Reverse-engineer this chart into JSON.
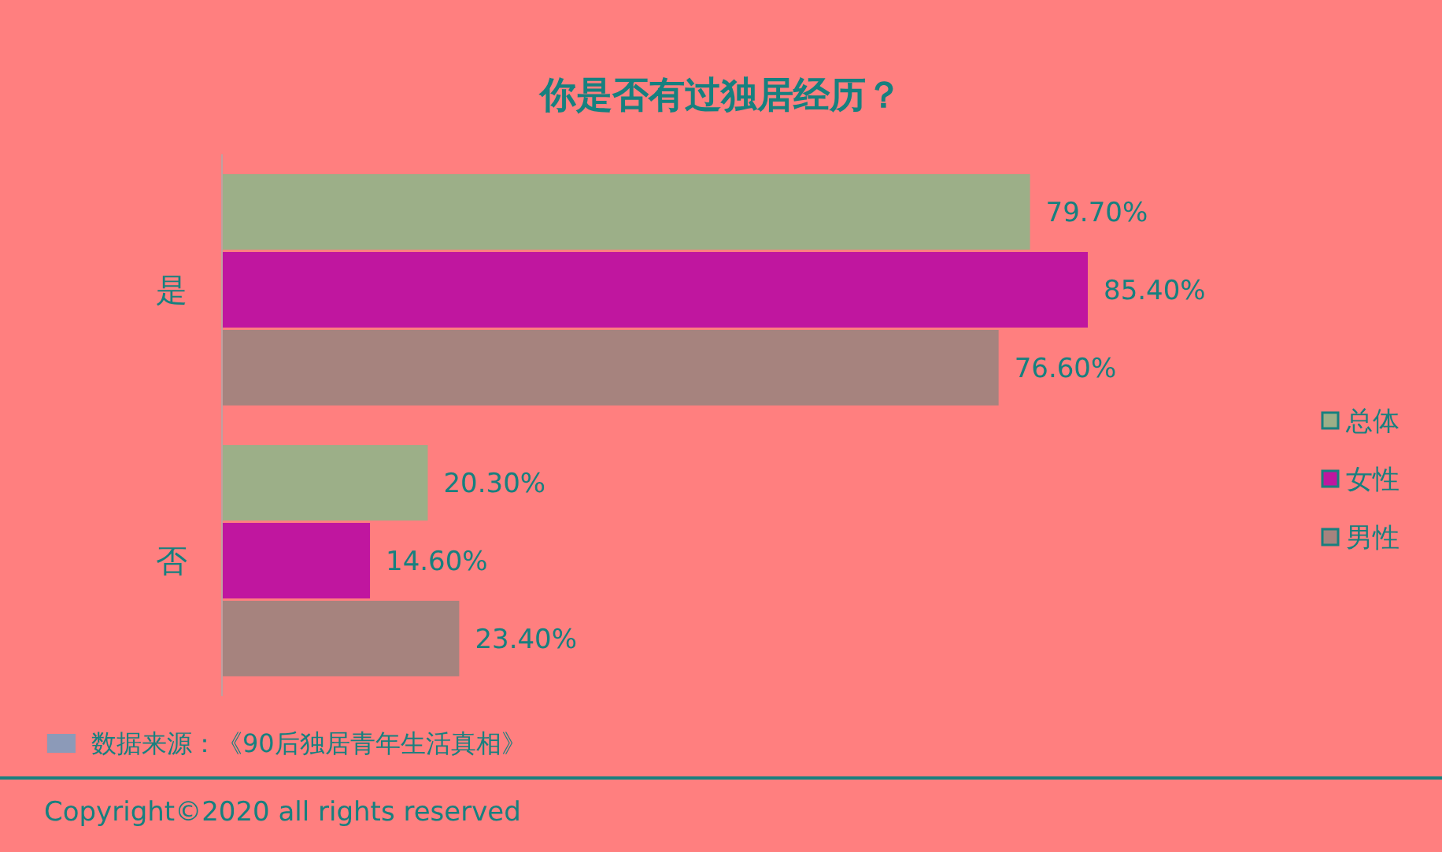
{
  "chart_data": {
    "type": "bar",
    "orientation": "horizontal",
    "title": "你是否有过独居经历？",
    "categories": [
      "是",
      "否"
    ],
    "series": [
      {
        "name": "总体",
        "color": "#9caf88",
        "values": [
          79.7,
          20.3
        ],
        "value_labels": [
          "79.70%",
          "20.30%"
        ]
      },
      {
        "name": "女性",
        "color": "#c0169f",
        "values": [
          85.4,
          14.6
        ],
        "value_labels": [
          "85.40%",
          "14.60%"
        ]
      },
      {
        "name": "男性",
        "color": "#a6837e",
        "values": [
          76.6,
          23.4
        ],
        "value_labels": [
          "76.60%",
          "23.40%"
        ]
      }
    ],
    "legend": "right",
    "grid": false,
    "annotations": [
      "数据来源：《90后独居青年生活真相》",
      "Copyright©2020 all rights reserved"
    ]
  }
}
